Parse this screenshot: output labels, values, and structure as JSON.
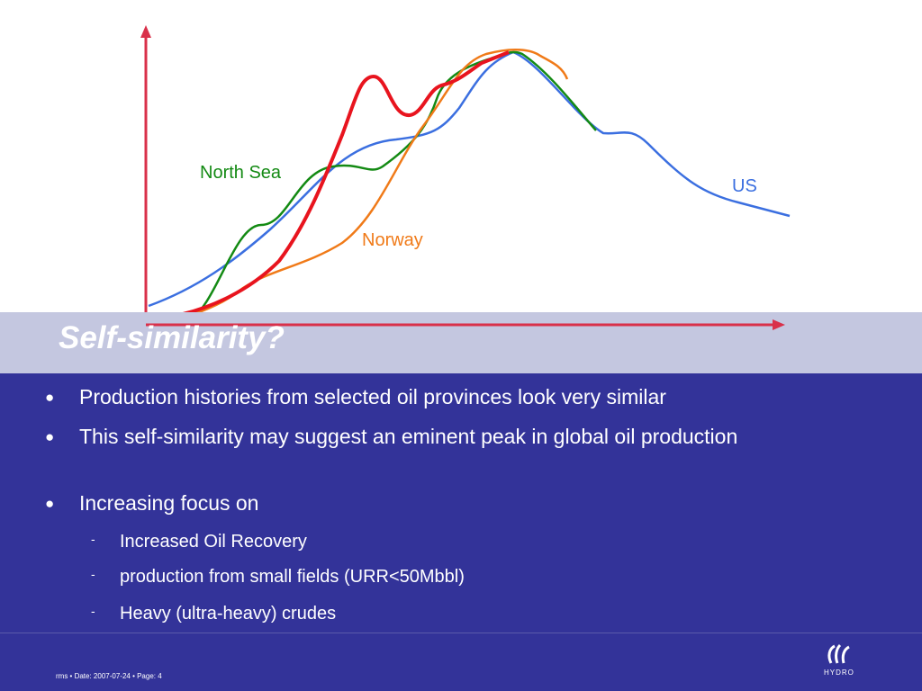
{
  "chart_labels": {
    "north_sea": "North Sea",
    "us": "US",
    "norway": "Norway"
  },
  "title": "Self-similarity?",
  "bullets": [
    "Production histories from selected oil provinces look very similar",
    "This self-similarity may suggest an eminent peak in global oil production",
    "Increasing focus on"
  ],
  "sub_bullets": [
    "Increased Oil Recovery",
    "production from small fields (URR<50Mbbl)",
    "Heavy (ultra-heavy) crudes"
  ],
  "footer": "rms • Date: 2007-07-24 • Page: 4",
  "logo": "HYDRO"
}
